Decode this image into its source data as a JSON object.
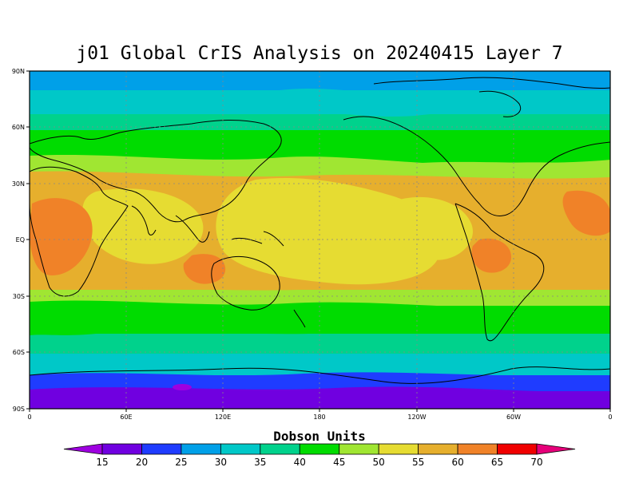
{
  "title": "j01 Global CrIS Analysis on 20240415 Layer 7",
  "colorbar": {
    "title": "Dobson Units",
    "levels": [
      15,
      20,
      25,
      30,
      35,
      40,
      45,
      50,
      55,
      60,
      65,
      70
    ],
    "colors": [
      "#9e00e0",
      "#7000e0",
      "#1f3cff",
      "#00a0e8",
      "#00c8c8",
      "#00d28c",
      "#00dc00",
      "#a0e632",
      "#e6dc32",
      "#e6af2d",
      "#f08228",
      "#f00000",
      "#e6007a"
    ]
  },
  "axes": {
    "lat_labels": [
      "90N",
      "60N",
      "30N",
      "EQ",
      "30S",
      "60S",
      "90S"
    ],
    "lon_labels": [
      "0",
      "60E",
      "120E",
      "180",
      "120W",
      "60W",
      "0"
    ]
  },
  "chart_data": {
    "type": "heatmap",
    "title": "j01 Global CrIS Analysis on 20240415 Layer 7",
    "colorbar_label": "Dobson Units",
    "x_range": [
      0,
      360
    ],
    "y_range": [
      -90,
      90
    ],
    "contour_levels": [
      15,
      20,
      25,
      30,
      35,
      40,
      45,
      50,
      55,
      60,
      65,
      70
    ],
    "latitudes": [
      90,
      80,
      70,
      60,
      50,
      40,
      30,
      20,
      10,
      0,
      -10,
      -20,
      -30,
      -40,
      -50,
      -60,
      -70,
      -80,
      -90
    ],
    "zonal_mean_values": [
      28,
      29,
      31,
      36,
      42,
      46,
      52,
      55,
      56,
      57,
      56,
      55,
      52,
      44,
      39,
      33,
      25,
      17,
      14
    ]
  }
}
